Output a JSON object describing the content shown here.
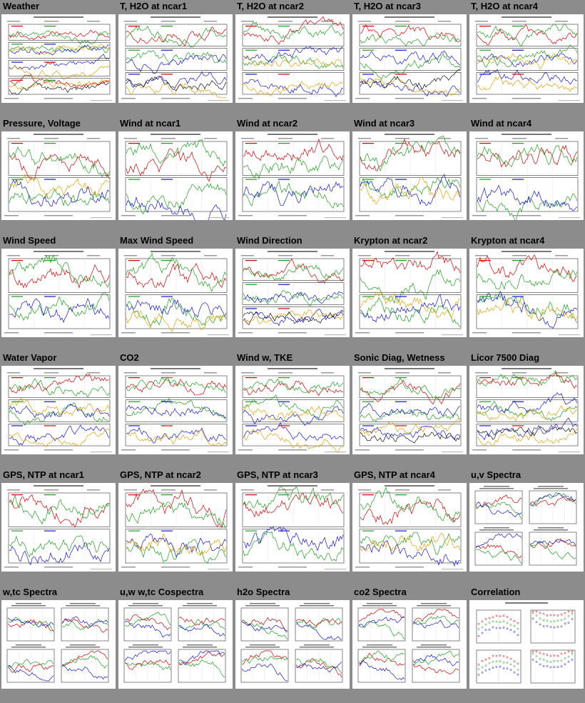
{
  "page": {
    "background": "#8c8c8c",
    "rows": [
      [
        "Weather",
        "T, H2O at ncar1",
        "T, H2O at ncar2",
        "T, H2O at ncar3",
        "T, H2O at ncar4"
      ],
      [
        "Pressure, Voltage",
        "Wind at ncar1",
        "Wind at ncar2",
        "Wind at ncar3",
        "Wind at ncar4"
      ],
      [
        "Wind Speed",
        "Max Wind Speed",
        "Wind Direction",
        "Krypton at ncar2",
        "Krypton at ncar4"
      ],
      [
        "Water Vapor",
        "CO2",
        "Wind w, TKE",
        "Sonic Diag, Wetness",
        "Licor 7500 Diag"
      ],
      [
        "GPS, NTP at ncar1",
        "GPS, NTP at ncar2",
        "GPS, NTP at ncar3",
        "GPS, NTP at ncar4",
        "u,v Spectra"
      ],
      [
        "w,tc Spectra",
        "u,w w,tc Cospectra",
        "h2o Spectra",
        "co2 Spectra",
        "Correlation"
      ]
    ]
  },
  "trace_colors": [
    "#d40000",
    "#1aa01a",
    "#1414d8",
    "#e0a000",
    "#111111"
  ]
}
